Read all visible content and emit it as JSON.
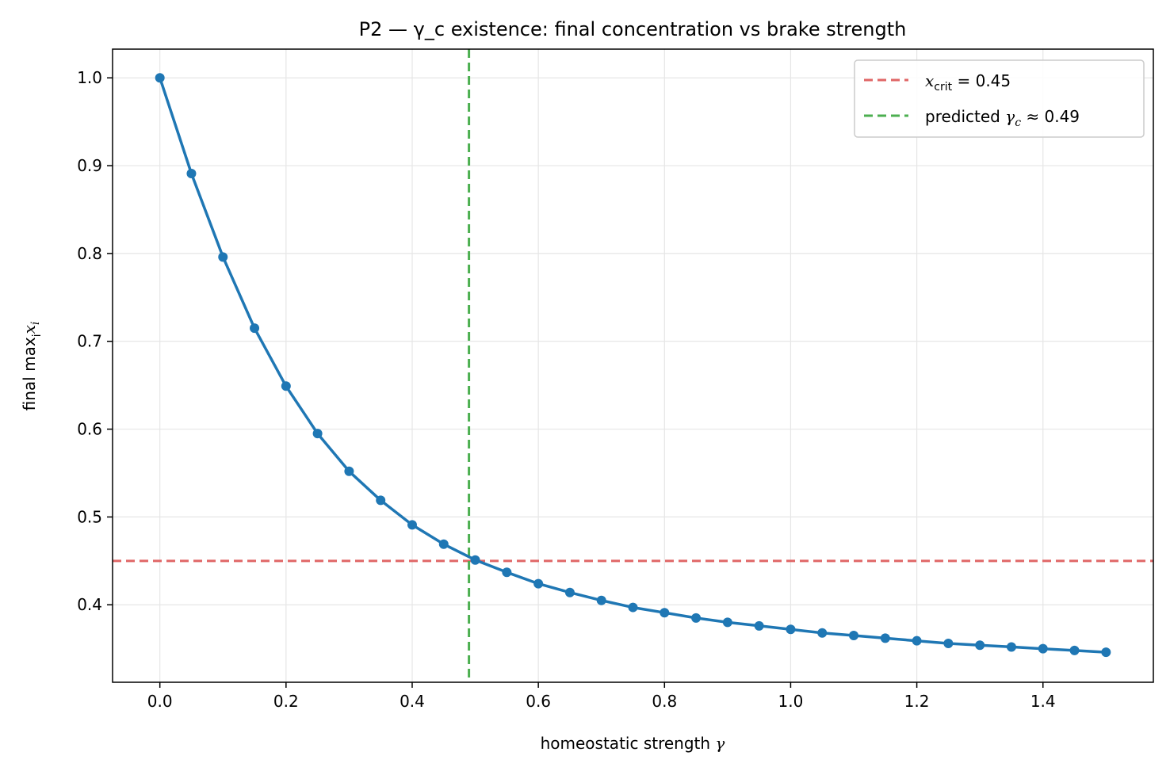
{
  "chart_data": {
    "type": "line",
    "title": "P2 — γ_c existence: final concentration vs brake strength",
    "xlabel": "homeostatic strength γ",
    "xlabel_text": "homeostatic strength ",
    "xlabel_symbol": "γ",
    "ylabel": "final max x_i",
    "ylabel_text": "final max",
    "ylabel_sub": "i",
    "ylabel_var": "x",
    "ylabel_var_sub": "i",
    "xlim": [
      -0.075,
      1.575
    ],
    "ylim": [
      0.3118,
      1.0327
    ],
    "xticks": [
      0.0,
      0.2,
      0.4,
      0.6,
      0.8,
      1.0,
      1.2,
      1.4
    ],
    "xtick_labels": [
      "0.0",
      "0.2",
      "0.4",
      "0.6",
      "0.8",
      "1.0",
      "1.2",
      "1.4"
    ],
    "yticks": [
      0.4,
      0.5,
      0.6,
      0.7,
      0.8,
      0.9,
      1.0
    ],
    "ytick_labels": [
      "0.4",
      "0.5",
      "0.6",
      "0.7",
      "0.8",
      "0.9",
      "1.0"
    ],
    "grid": true,
    "legend_position": "top-right",
    "series": [
      {
        "name": "",
        "color": "#1f77b4",
        "style": "solid",
        "marker": "circle",
        "x": [
          0.0,
          0.05,
          0.1,
          0.15,
          0.2,
          0.25,
          0.3,
          0.35,
          0.4,
          0.45,
          0.5,
          0.55,
          0.6,
          0.65,
          0.7,
          0.75,
          0.8,
          0.85,
          0.9,
          0.95,
          1.0,
          1.05,
          1.1,
          1.15,
          1.2,
          1.25,
          1.3,
          1.35,
          1.4,
          1.45,
          1.5
        ],
        "y": [
          1.0,
          0.891,
          0.796,
          0.715,
          0.649,
          0.595,
          0.552,
          0.519,
          0.491,
          0.469,
          0.451,
          0.437,
          0.424,
          0.414,
          0.405,
          0.397,
          0.391,
          0.385,
          0.38,
          0.376,
          0.372,
          0.368,
          0.365,
          0.362,
          0.359,
          0.356,
          0.354,
          0.352,
          0.35,
          0.348,
          0.346
        ]
      }
    ],
    "reference_lines": [
      {
        "orientation": "horizontal",
        "value": 0.45,
        "color": "#e06666",
        "style": "dashed",
        "legend_var": "x",
        "legend_sub": "crit",
        "legend_rest": " = 0.45"
      },
      {
        "orientation": "vertical",
        "value": 0.49,
        "color": "#4caf50",
        "style": "dashed",
        "legend_prefix": "predicted ",
        "legend_var": "γ",
        "legend_sub": "c",
        "legend_rest": " ≈ 0.49"
      }
    ]
  }
}
